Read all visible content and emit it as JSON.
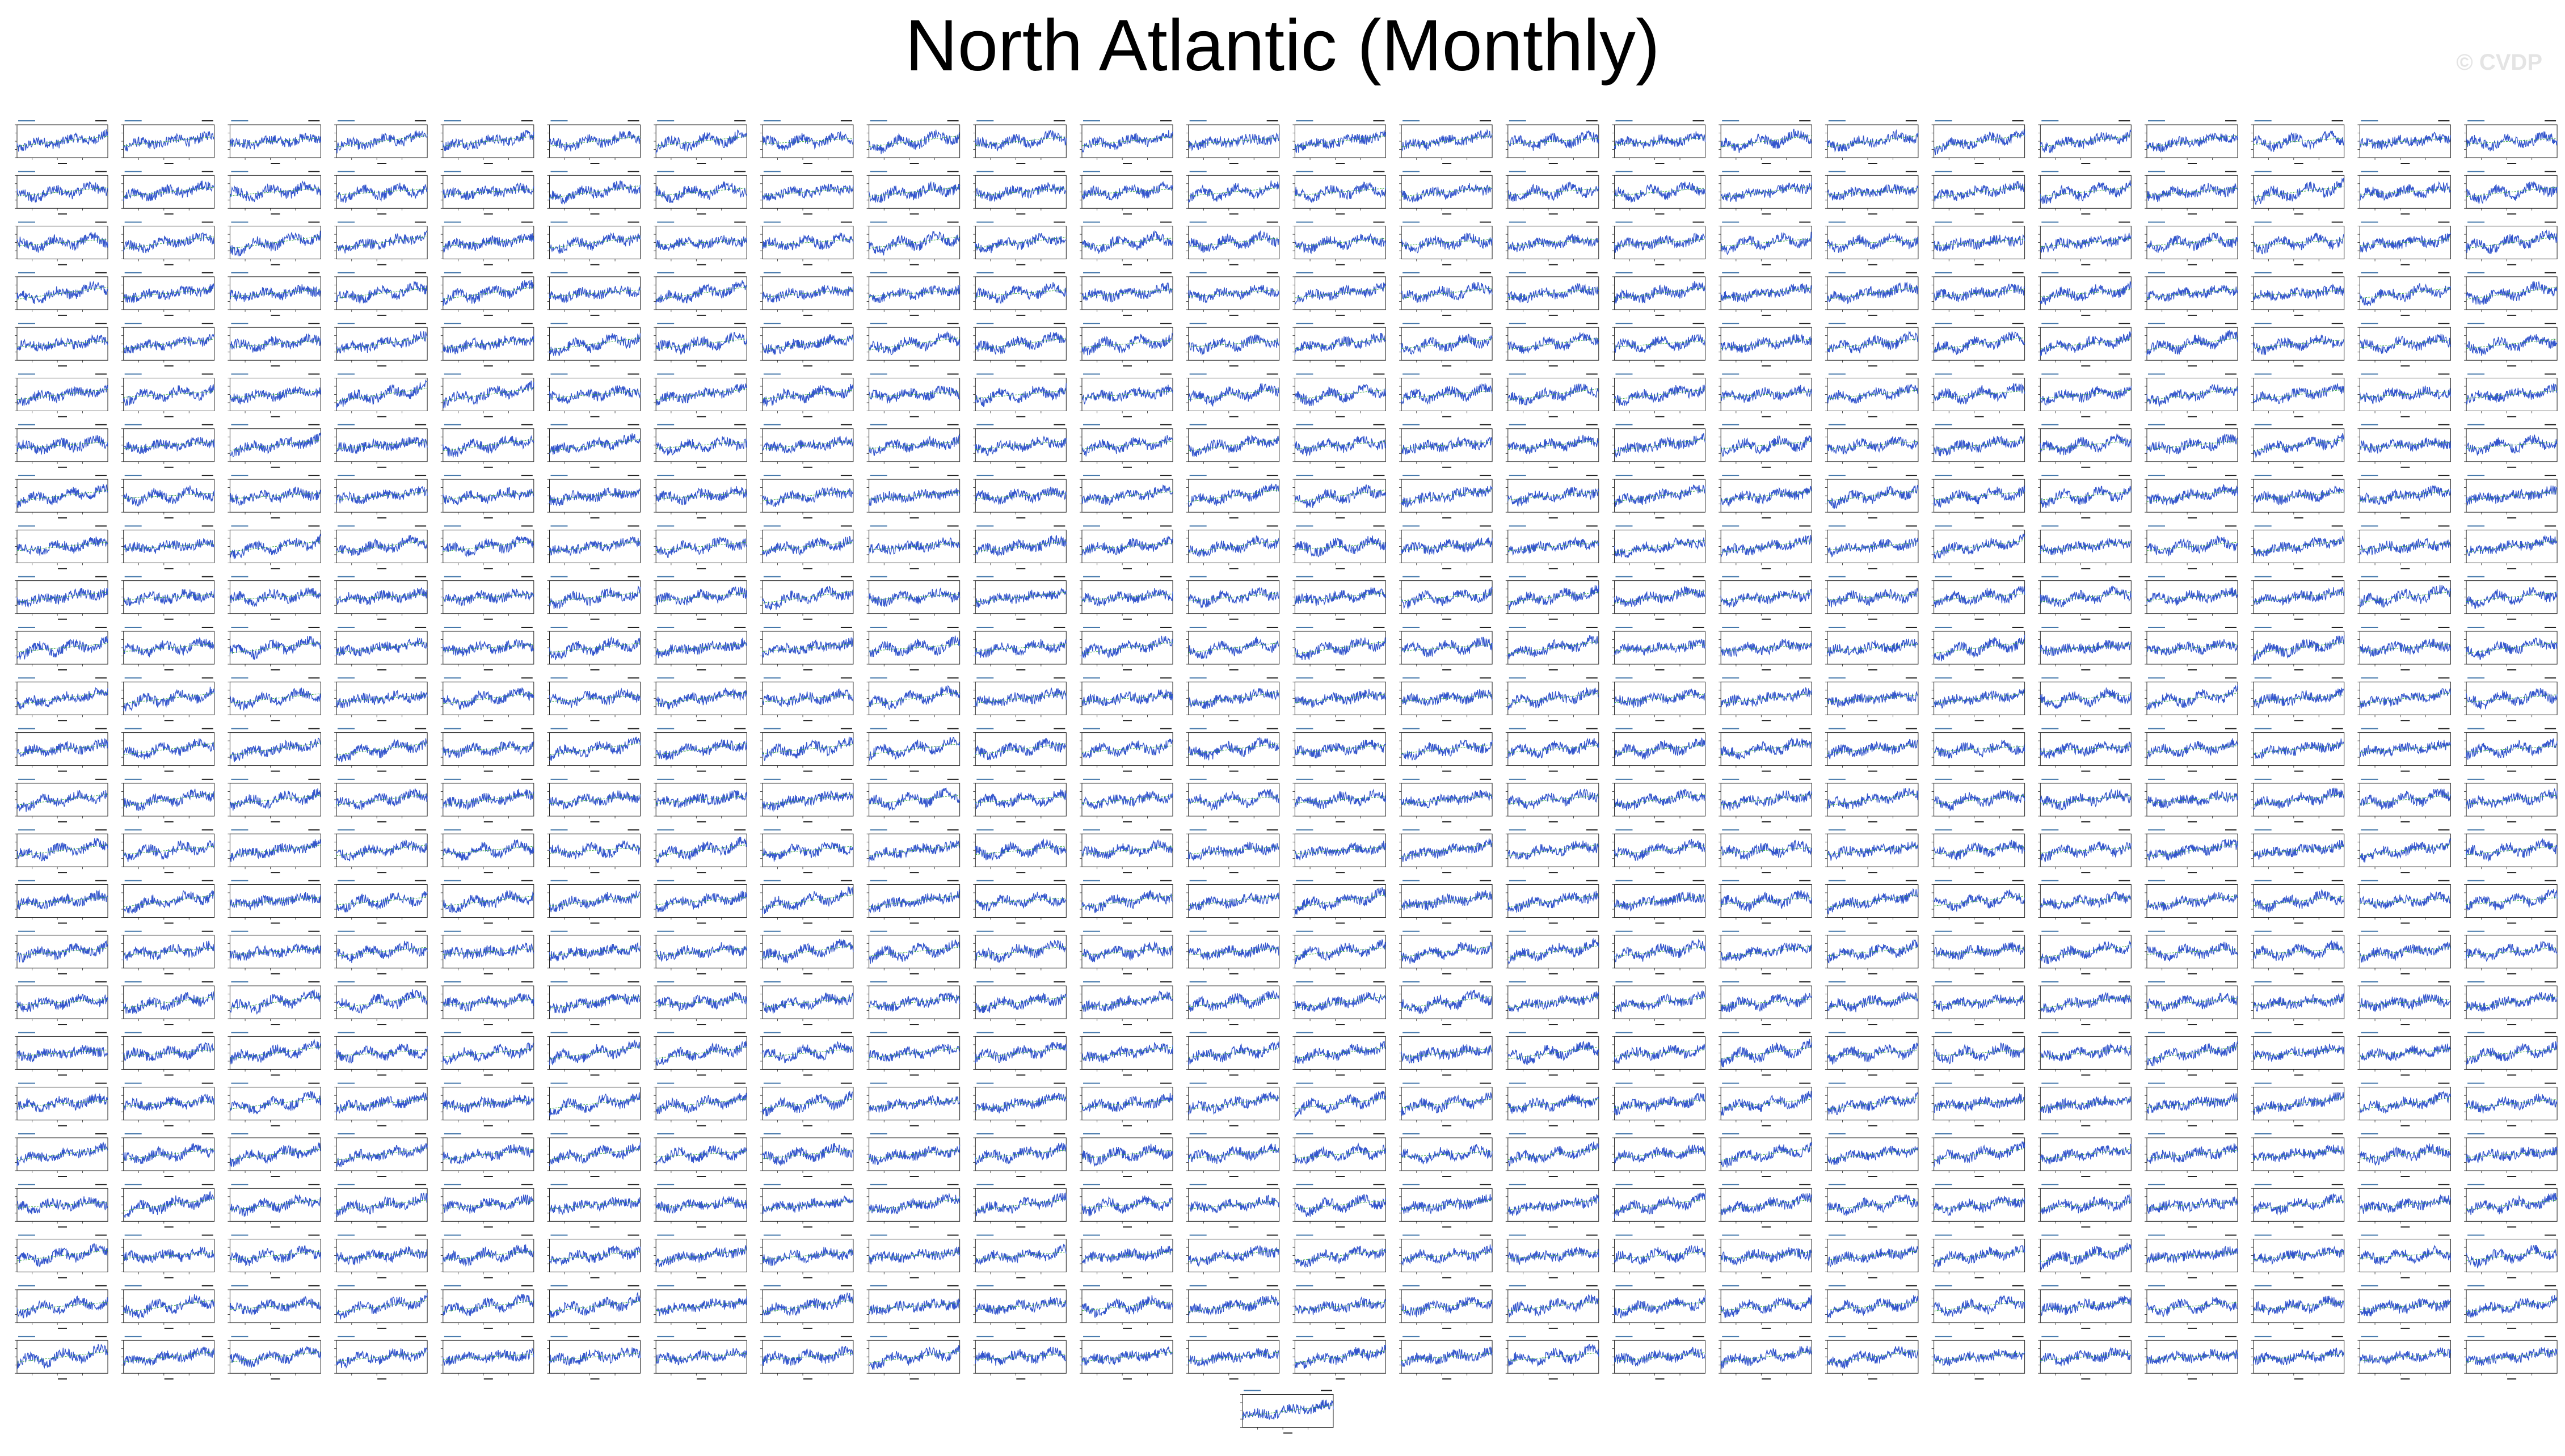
{
  "page_title": "North Atlantic (Monthly)",
  "watermark": "© CVDP",
  "colors": {
    "background": "#ffffff",
    "series": "#3355cc",
    "trend": "#33aa33",
    "axes": "#222222",
    "panel_text": "#4477aa"
  },
  "chart_data": {
    "type": "line",
    "title": "North Atlantic (Monthly)",
    "layout": "small-multiples",
    "grid_rows": 25,
    "grid_cols": 24,
    "extra_panels_last_row": 1,
    "panel_count": 601,
    "x": {
      "start_year": 1920,
      "end_year": 2100,
      "ticks": [
        1950,
        2000,
        2050
      ]
    },
    "ylim": [
      -1.5,
      1.5
    ],
    "series": [
      {
        "name": "",
        "kind": "monthly anomaly",
        "trend_per_century": 0.45,
        "noise_amplitude": 0.45
      }
    ],
    "grid": false,
    "legend": "none"
  }
}
